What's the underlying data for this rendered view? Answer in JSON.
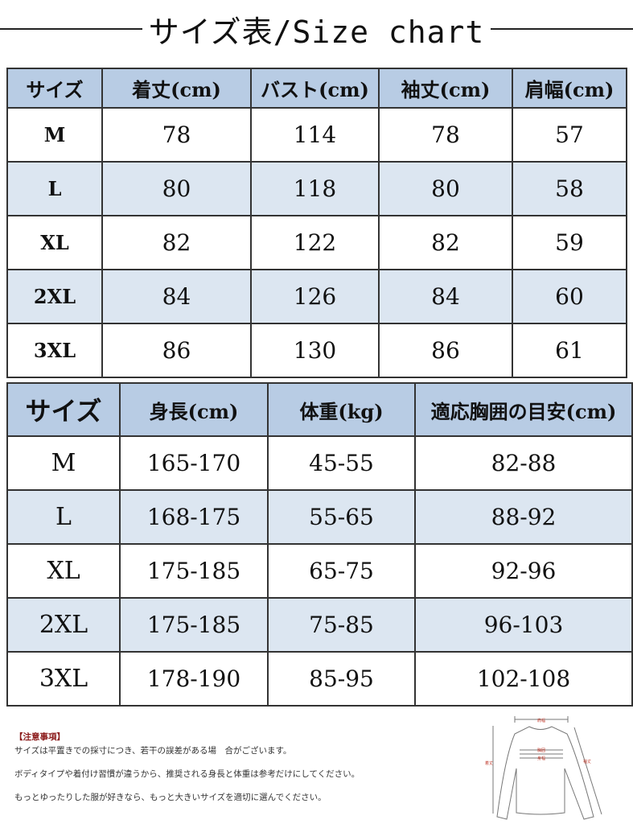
{
  "title": "サイズ表/Size chart",
  "table1": {
    "headers": [
      "サイズ",
      "着丈(cm)",
      "バスト(cm)",
      "袖丈(cm)",
      "肩幅(cm)"
    ],
    "rows": [
      [
        "M",
        "78",
        "114",
        "78",
        "57"
      ],
      [
        "L",
        "80",
        "118",
        "80",
        "58"
      ],
      [
        "XL",
        "82",
        "122",
        "82",
        "59"
      ],
      [
        "2XL",
        "84",
        "126",
        "84",
        "60"
      ],
      [
        "3XL",
        "86",
        "130",
        "86",
        "61"
      ]
    ]
  },
  "table2": {
    "headers": [
      "サイズ",
      "身長(cm)",
      "体重(kg)",
      "適応胸囲の目安(cm)"
    ],
    "rows": [
      [
        "M",
        "165-170",
        "45-55",
        "82-88"
      ],
      [
        "L",
        "168-175",
        "55-65",
        "88-92"
      ],
      [
        "XL",
        "175-185",
        "65-75",
        "92-96"
      ],
      [
        "2XL",
        "175-185",
        "75-85",
        "96-103"
      ],
      [
        "3XL",
        "178-190",
        "85-95",
        "102-108"
      ]
    ]
  },
  "notes": {
    "heading": "【注意事項】",
    "lines": [
      "サイズは平置きでの採寸につき、若干の誤差がある場　合がございます。",
      "ボディタイプや着付け習慣が違うから、推奨される身長と体重は参考だけにしてください。",
      "もっとゆったりした服が好きなら、もっと大きいサイズを適切に選んでください。"
    ]
  },
  "diagram": {
    "shoulder": "肩幅",
    "chest": "胸囲",
    "body_width": "身幅",
    "length": "着丈",
    "sleeve": "袖丈"
  },
  "colors": {
    "header_bg": "#b8cce4",
    "alt_row_bg": "#dce6f1",
    "note_heading": "#8b1a1a",
    "diagram_label": "#c0392b"
  }
}
